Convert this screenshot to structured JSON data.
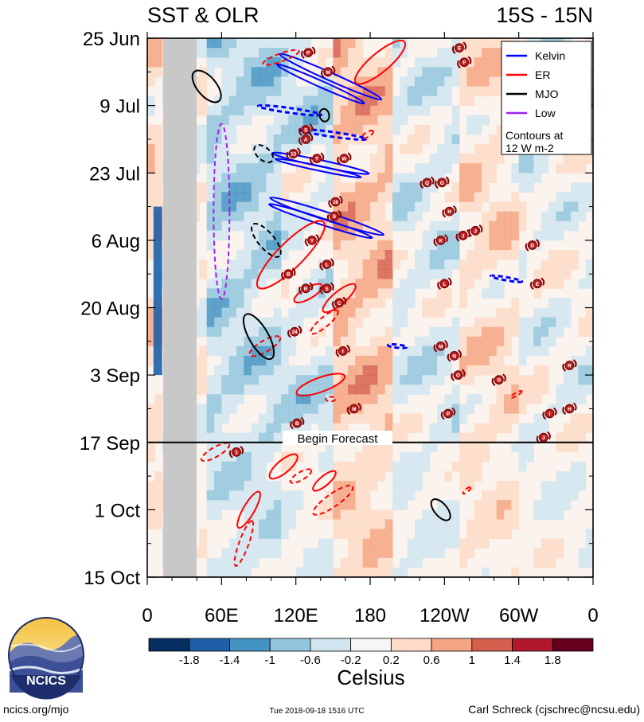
{
  "chart_data": {
    "type": "heatmap",
    "title_left": "SST & OLR",
    "title_right": "15S - 15N",
    "x_ticks": [
      "0",
      "60E",
      "120E",
      "180",
      "120W",
      "60W",
      "0"
    ],
    "x_range": [
      0,
      360
    ],
    "y_ticks": [
      "25 Jun",
      "9 Jul",
      "23 Jul",
      "6 Aug",
      "20 Aug",
      "3 Sep",
      "17 Sep",
      "1 Oct",
      "15 Oct"
    ],
    "y_range_days": [
      0,
      112
    ],
    "forecast_label": "Begin Forecast",
    "forecast_day": 84,
    "legend": {
      "entries": [
        {
          "name": "Kelvin",
          "color": "#0000ff"
        },
        {
          "name": "ER",
          "color": "#ff0000"
        },
        {
          "name": "MJO",
          "color": "#000000"
        },
        {
          "name": "Low",
          "color": "#a020f0"
        }
      ],
      "note_line1": "Contours at",
      "note_line2": "12 W m-2"
    },
    "colorbar": {
      "label": "Celsius",
      "tick_labels": [
        "-1.8",
        "-1.4",
        "-1",
        "-0.6",
        "-0.2",
        "0.2",
        "0.6",
        "1",
        "1.4",
        "1.8"
      ],
      "colors": [
        "#053061",
        "#1f5fa8",
        "#4393c3",
        "#92c5de",
        "#d1e5f0",
        "#f7f7f7",
        "#fddbc7",
        "#f4a582",
        "#d6604d",
        "#b2182b",
        "#67001f"
      ]
    },
    "land_mask_lon": [
      12,
      40
    ],
    "storms": [
      {
        "label": "P",
        "lon": 130,
        "day": 3
      },
      {
        "label": "E",
        "lon": 252,
        "day": 2
      },
      {
        "label": "F",
        "lon": 256,
        "day": 5
      },
      {
        "label": "M",
        "lon": 146,
        "day": 7
      },
      {
        "label": "S",
        "lon": 128,
        "day": 19
      },
      {
        "label": "A",
        "lon": 128,
        "day": 21
      },
      {
        "label": "13",
        "lon": 118,
        "day": 24
      },
      {
        "label": "T",
        "lon": 137,
        "day": 25
      },
      {
        "label": "W",
        "lon": 159,
        "day": 25
      },
      {
        "label": "Q",
        "lon": 226,
        "day": 30
      },
      {
        "label": "G",
        "lon": 238,
        "day": 30
      },
      {
        "label": "16",
        "lon": 152,
        "day": 34
      },
      {
        "label": "H",
        "lon": 244,
        "day": 36
      },
      {
        "label": "S",
        "lon": 151,
        "day": 37
      },
      {
        "label": "Y",
        "lon": 133,
        "day": 42
      },
      {
        "label": "K",
        "lon": 237,
        "day": 42
      },
      {
        "label": "J",
        "lon": 255,
        "day": 41
      },
      {
        "label": "J",
        "lon": 265,
        "day": 40
      },
      {
        "label": "D",
        "lon": 311,
        "day": 43
      },
      {
        "label": "L",
        "lon": 145,
        "day": 47
      },
      {
        "label": "B",
        "lon": 114,
        "day": 49
      },
      {
        "label": "R",
        "lon": 128,
        "day": 52
      },
      {
        "label": "S",
        "lon": 145,
        "day": 52
      },
      {
        "label": "L",
        "lon": 240,
        "day": 51
      },
      {
        "label": "E",
        "lon": 315,
        "day": 51
      },
      {
        "label": "C",
        "lon": 155,
        "day": 55
      },
      {
        "label": "24",
        "lon": 119,
        "day": 61
      },
      {
        "label": "I",
        "lon": 158,
        "day": 65
      },
      {
        "label": "M",
        "lon": 237,
        "day": 64
      },
      {
        "label": "N",
        "lon": 248,
        "day": 66
      },
      {
        "label": "O",
        "lon": 251,
        "day": 70
      },
      {
        "label": "G",
        "lon": 284,
        "day": 71
      },
      {
        "label": "R",
        "lon": 341,
        "day": 68
      },
      {
        "label": "M",
        "lon": 167,
        "day": 77
      },
      {
        "label": "P",
        "lon": 243,
        "day": 78
      },
      {
        "label": "I",
        "lon": 325,
        "day": 78
      },
      {
        "label": "H",
        "lon": 341,
        "day": 77
      },
      {
        "label": "B",
        "lon": 121,
        "day": 80
      },
      {
        "label": "J",
        "lon": 320,
        "day": 83
      },
      {
        "label": "1",
        "lon": 72,
        "day": 86
      }
    ]
  },
  "logo": {
    "text": "NCICS"
  },
  "footer": {
    "left": "ncics.org/mjo",
    "center": "Tue 2018-09-18 1516 UTC",
    "right": "Carl Schreck (cjschrec@ncsu.edu)"
  }
}
